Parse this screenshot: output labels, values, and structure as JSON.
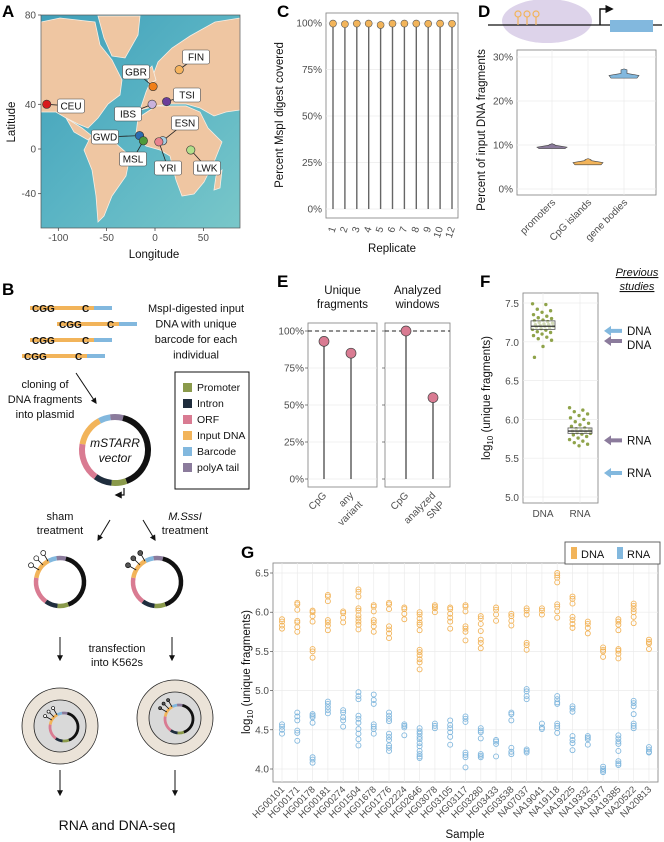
{
  "panel_labels": [
    "A",
    "B",
    "C",
    "D",
    "E",
    "F",
    "G"
  ],
  "diagram_b": {
    "fragment_labels": {
      "cgg": "CGG",
      "c": "C"
    },
    "input_text": [
      "MspI-digested input",
      "DNA with unique",
      "barcode for each",
      "individual"
    ],
    "cloning_text": [
      "cloning of",
      "DNA fragments",
      "into plasmid"
    ],
    "vector_label": [
      "mSTARR",
      "vector"
    ],
    "legend": [
      {
        "label": "Promoter",
        "color": "#8a9a4b"
      },
      {
        "label": "Intron",
        "color": "#1f2d3d"
      },
      {
        "label": "ORF",
        "color": "#d97b92"
      },
      {
        "label": "Input DNA",
        "color": "#f2b45a"
      },
      {
        "label": "Barcode",
        "color": "#82b8de"
      },
      {
        "label": "polyA tail",
        "color": "#8b7b9c"
      }
    ],
    "sham_text": [
      "sham",
      "treatment"
    ],
    "msssi_text": [
      "M.SssI",
      "treatment"
    ],
    "transfection_text": [
      "transfection",
      "into K562s"
    ],
    "final_text": "RNA and DNA-seq"
  },
  "chart_data": [
    {
      "panel": "A",
      "type": "scatter",
      "title": "",
      "xlabel": "Longitude",
      "ylabel": "Latitude",
      "xticks": [
        -100,
        -50,
        0,
        50
      ],
      "yticks": [
        80,
        40,
        0,
        -40
      ],
      "points": [
        {
          "label": "CEU",
          "lon": -112,
          "lat": 40,
          "color": "#d7191c"
        },
        {
          "label": "GBR",
          "lon": -2,
          "lat": 52,
          "color": "#f07f1a"
        },
        {
          "label": "FIN",
          "lon": 25,
          "lat": 61,
          "color": "#f6b45e"
        },
        {
          "label": "IBS",
          "lon": -3,
          "lat": 40,
          "color": "#c9b2dc"
        },
        {
          "label": "TSI",
          "lon": 12,
          "lat": 42,
          "color": "#6a3d9a"
        },
        {
          "label": "ESN",
          "lon": 8,
          "lat": 8,
          "color": "#a6cee3"
        },
        {
          "label": "GWD",
          "lon": -16,
          "lat": 13,
          "color": "#2b6cb0"
        },
        {
          "label": "MSL",
          "lon": -12,
          "lat": 8,
          "color": "#4f9a3a"
        },
        {
          "label": "YRI",
          "lon": 4,
          "lat": 7,
          "color": "#e9838f"
        },
        {
          "label": "LWK",
          "lon": 37,
          "lat": -1,
          "color": "#b2df8a"
        }
      ]
    },
    {
      "panel": "C",
      "type": "lollipop",
      "xlabel": "Replicate",
      "ylabel": "Percent MspI digest covered",
      "categories": [
        "1",
        "2",
        "3",
        "4",
        "5",
        "6",
        "7",
        "8",
        "9",
        "10",
        "12"
      ],
      "values": [
        99.7,
        99.4,
        99.7,
        99.7,
        98.9,
        99.7,
        99.7,
        99.7,
        99.6,
        99.7,
        99.6
      ],
      "yticks": [
        "0%",
        "25%",
        "50%",
        "75%",
        "100%"
      ],
      "ylim": [
        0,
        100
      ],
      "point_color": "#f2b45a"
    },
    {
      "panel": "D",
      "type": "violin",
      "ylabel": "Percent of input DNA fragments",
      "categories": [
        "promoters",
        "CpG islands",
        "gene bodies"
      ],
      "series": [
        {
          "name": "promoters",
          "min": 9.2,
          "mode": 9.5,
          "max": 10.3,
          "color": "#8b7b9c"
        },
        {
          "name": "CpG islands",
          "min": 5.5,
          "mode": 6.0,
          "max": 6.9,
          "color": "#f2b45a"
        },
        {
          "name": "gene bodies",
          "min": 25.2,
          "mode": 25.8,
          "max": 27.3,
          "color": "#82b8de"
        }
      ],
      "yticks": [
        "0%",
        "10%",
        "20%",
        "30%"
      ],
      "ylim": [
        0,
        30
      ]
    },
    {
      "panel": "E",
      "type": "lollipop",
      "facets": [
        {
          "title": [
            "Unique",
            "fragments"
          ],
          "categories": [
            [
              "CpG"
            ],
            [
              "any",
              "variant"
            ]
          ],
          "values": [
            93,
            85
          ]
        },
        {
          "title": [
            "Analyzed",
            "windows"
          ],
          "categories": [
            [
              "CpG"
            ],
            [
              "analyzed",
              "SNP"
            ]
          ],
          "values": [
            100,
            55
          ]
        }
      ],
      "yticks": [
        "0%",
        "25%",
        "50%",
        "75%",
        "100%"
      ],
      "reference_line": 100,
      "ylim": [
        0,
        100
      ],
      "point_color": "#d97b92"
    },
    {
      "panel": "F",
      "type": "box",
      "ylabel": "log10 (unique fragments)",
      "ylabel_parts": {
        "base": "log",
        "sub": "10",
        "rest": " (unique fragments)"
      },
      "categories": [
        "DNA",
        "RNA"
      ],
      "yticks": [
        "5.0",
        "5.5",
        "6.0",
        "6.5",
        "7.0",
        "7.5"
      ],
      "ylim": [
        4.9,
        7.6
      ],
      "boxes": [
        {
          "name": "DNA",
          "q1": 7.16,
          "median": 7.2,
          "q3": 7.27
        },
        {
          "name": "RNA",
          "q1": 5.82,
          "median": 5.85,
          "q3": 5.89
        }
      ],
      "points": {
        "DNA": [
          7.49,
          7.48,
          7.42,
          7.4,
          7.38,
          7.35,
          7.33,
          7.31,
          7.3,
          7.28,
          7.27,
          7.26,
          7.25,
          7.24,
          7.23,
          7.22,
          7.22,
          7.21,
          7.2,
          7.2,
          7.19,
          7.18,
          7.17,
          7.16,
          7.15,
          7.13,
          7.12,
          7.1,
          7.08,
          7.06,
          7.04,
          7.02,
          6.94,
          6.8
        ],
        "RNA": [
          6.15,
          6.12,
          6.1,
          6.07,
          6.05,
          6.02,
          6.0,
          5.97,
          5.95,
          5.93,
          5.91,
          5.89,
          5.88,
          5.87,
          5.86,
          5.85,
          5.84,
          5.83,
          5.82,
          5.81,
          5.8,
          5.78,
          5.76,
          5.74,
          5.72,
          5.7,
          5.68,
          5.66
        ]
      },
      "point_color": "#8fa34a",
      "previous_studies_title": [
        "Previous",
        "studies"
      ],
      "previous_studies": [
        {
          "label": "DNA",
          "value": 7.14,
          "color": "#82b8de"
        },
        {
          "label": "DNA",
          "value": 7.01,
          "color": "#8b7b9c"
        },
        {
          "label": "RNA",
          "value": 5.73,
          "color": "#8b7b9c"
        },
        {
          "label": "RNA",
          "value": 5.31,
          "color": "#82b8de"
        }
      ]
    },
    {
      "panel": "G",
      "type": "scatter",
      "xlabel": "Sample",
      "ylabel": "log10 (unique fragments)",
      "ylabel_parts": {
        "base": "log",
        "sub": "10",
        "rest": " (unique fragments)"
      },
      "yticks": [
        "4.0",
        "4.5",
        "5.0",
        "5.5",
        "6.0",
        "6.5"
      ],
      "ylim": [
        3.85,
        6.6
      ],
      "legend": [
        {
          "name": "DNA",
          "color": "#f2b45a"
        },
        {
          "name": "RNA",
          "color": "#82b8de"
        }
      ],
      "legend_position": "top-right",
      "samples": [
        {
          "id": "HG00101",
          "DNA": [
            5.91,
            5.88,
            5.83,
            5.79
          ],
          "RNA": [
            4.57,
            4.54,
            4.5,
            4.45
          ]
        },
        {
          "id": "HG00171",
          "DNA": [
            6.12,
            6.1,
            6.03,
            5.89,
            5.87,
            5.81,
            5.75
          ],
          "RNA": [
            4.72,
            4.67,
            4.62,
            4.49,
            4.46,
            4.36
          ]
        },
        {
          "id": "HG00178",
          "DNA": [
            6.02,
            6.0,
            5.95,
            5.88,
            5.53,
            5.5,
            5.42
          ],
          "RNA": [
            4.7,
            4.68,
            4.66,
            4.59,
            4.15,
            4.12,
            4.08
          ]
        },
        {
          "id": "HG00181",
          "DNA": [
            6.22,
            6.2,
            6.14,
            5.9,
            5.87,
            5.83,
            5.77
          ],
          "RNA": [
            4.86,
            4.83,
            4.79,
            4.75,
            4.71
          ]
        },
        {
          "id": "HG00274",
          "DNA": [
            6.01,
            5.99,
            5.93,
            5.87
          ],
          "RNA": [
            4.75,
            4.72,
            4.66,
            4.62,
            4.54
          ]
        },
        {
          "id": "HG01504",
          "DNA": [
            6.29,
            6.26,
            6.2,
            6.05,
            6.02,
            5.96,
            5.92,
            5.88,
            5.84,
            5.78
          ],
          "RNA": [
            4.98,
            4.93,
            4.89,
            4.68,
            4.64,
            4.59,
            4.51,
            4.45,
            4.38,
            4.3
          ]
        },
        {
          "id": "HG01678",
          "DNA": [
            6.09,
            6.07,
            6.01,
            5.9,
            5.87,
            5.82,
            5.75
          ],
          "RNA": [
            4.95,
            4.88,
            4.83,
            4.57,
            4.54,
            4.51,
            4.45
          ]
        },
        {
          "id": "HG01776",
          "DNA": [
            6.12,
            6.1,
            6.04,
            5.82,
            5.78,
            5.73,
            5.67
          ],
          "RNA": [
            4.72,
            4.68,
            4.64,
            4.61,
            4.45,
            4.41,
            4.37,
            4.3,
            4.27,
            4.23
          ]
        },
        {
          "id": "HG02224",
          "DNA": [
            6.06,
            6.04,
            5.98,
            5.91
          ],
          "RNA": [
            4.57,
            4.55,
            4.53,
            4.43
          ]
        },
        {
          "id": "HG02646",
          "DNA": [
            6.0,
            5.97,
            5.92,
            5.87,
            5.84,
            5.77,
            5.52,
            5.49,
            5.45,
            5.4,
            5.36,
            5.27
          ],
          "RNA": [
            4.52,
            4.48,
            4.45,
            4.41,
            4.38,
            4.33,
            4.29,
            4.23,
            4.19,
            4.16,
            4.14
          ]
        },
        {
          "id": "HG03078",
          "DNA": [
            6.09,
            6.07,
            6.05,
            6.0
          ],
          "RNA": [
            4.58,
            4.55,
            4.52
          ]
        },
        {
          "id": "HG03105",
          "DNA": [
            6.06,
            6.04,
            5.98,
            5.93,
            5.88,
            5.79
          ],
          "RNA": [
            4.62,
            4.56,
            4.52,
            4.47,
            4.41,
            4.31
          ]
        },
        {
          "id": "HG03117",
          "DNA": [
            6.09,
            6.07,
            6.01,
            5.82,
            5.79,
            5.75,
            5.64
          ],
          "RNA": [
            4.67,
            4.64,
            4.6,
            4.21,
            4.18,
            4.15,
            4.02
          ]
        },
        {
          "id": "HG03280",
          "DNA": [
            5.95,
            5.92,
            5.85,
            5.76,
            5.65,
            5.61,
            5.54
          ],
          "RNA": [
            4.52,
            4.49,
            4.47,
            4.39,
            4.19,
            4.17,
            4.15
          ]
        },
        {
          "id": "HG03433",
          "DNA": [
            6.06,
            6.03,
            5.97,
            5.89
          ],
          "RNA": [
            4.37,
            4.35,
            4.32,
            4.16
          ]
        },
        {
          "id": "HG03538",
          "DNA": [
            5.98,
            5.95,
            5.89,
            5.83
          ],
          "RNA": [
            4.72,
            4.7,
            4.62,
            4.27,
            4.22,
            4.19
          ]
        },
        {
          "id": "NA07037",
          "DNA": [
            6.05,
            6.02,
            5.97,
            5.61,
            5.58,
            5.52
          ],
          "RNA": [
            5.02,
            4.99,
            4.93,
            4.89,
            4.25,
            4.23,
            4.21
          ]
        },
        {
          "id": "NA19041",
          "DNA": [
            6.05,
            6.02,
            5.97
          ],
          "RNA": [
            4.58,
            4.53,
            4.51
          ]
        },
        {
          "id": "NA19118",
          "DNA": [
            6.5,
            6.47,
            6.44,
            6.38,
            6.1,
            6.07,
            6.01,
            5.93
          ],
          "RNA": [
            4.93,
            4.89,
            4.85,
            4.83,
            4.58,
            4.55,
            4.52,
            4.46
          ]
        },
        {
          "id": "NA19225",
          "DNA": [
            6.2,
            6.17,
            6.11,
            5.94,
            5.9,
            5.85,
            5.8
          ],
          "RNA": [
            4.8,
            4.77,
            4.73,
            4.42,
            4.37,
            4.33,
            4.24
          ]
        },
        {
          "id": "NA19332",
          "DNA": [
            5.88,
            5.85,
            5.8,
            5.73
          ],
          "RNA": [
            4.42,
            4.4,
            4.38,
            4.31
          ]
        },
        {
          "id": "NA19377",
          "DNA": [
            5.55,
            5.52,
            5.5,
            5.43
          ],
          "RNA": [
            4.03,
            4.0,
            3.98,
            3.96
          ]
        },
        {
          "id": "NA19385",
          "DNA": [
            5.91,
            5.88,
            5.84,
            5.77,
            5.53,
            5.51,
            5.47,
            5.41
          ],
          "RNA": [
            4.43,
            4.39,
            4.35,
            4.32,
            4.23,
            4.1,
            4.07,
            4.05
          ]
        },
        {
          "id": "NA20522",
          "DNA": [
            6.11,
            6.08,
            6.04,
            6.0,
            5.94,
            5.86
          ],
          "RNA": [
            4.87,
            4.84,
            4.8,
            4.7,
            4.58,
            4.55,
            4.52
          ]
        },
        {
          "id": "NA20813",
          "DNA": [
            5.65,
            5.62,
            5.6,
            5.53
          ],
          "RNA": [
            4.28,
            4.25,
            4.22,
            4.21
          ]
        }
      ]
    }
  ]
}
